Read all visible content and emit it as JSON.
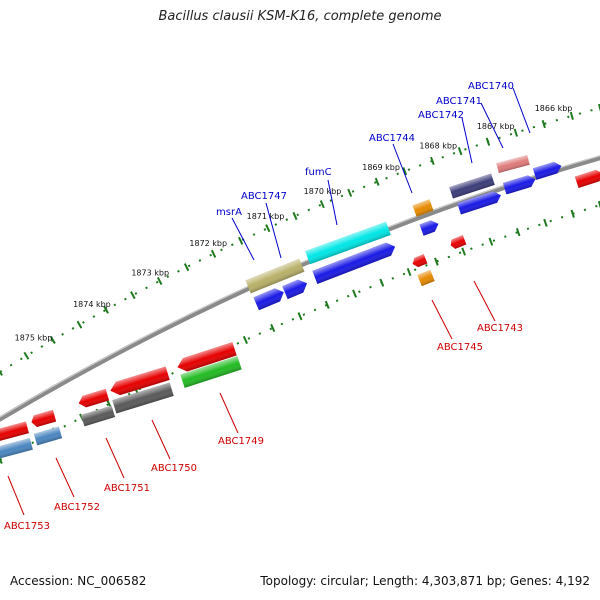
{
  "title": "Bacillus clausii KSM-K16, complete genome",
  "footer": {
    "accession": "Accession: NC_006582",
    "summary": "Topology: circular; Length: 4,303,871 bp; Genes: 4,192"
  },
  "colors": {
    "backbone": "#8a8a8a",
    "tick": "#1f7a1f",
    "top_label": "#0000cc",
    "bottom_label": "#cc0000"
  },
  "kbp_ticks": [
    {
      "label": "1866 kbp",
      "t": 0.93
    },
    {
      "label": "1867 kbp",
      "t": 0.836
    },
    {
      "label": "1868 kbp",
      "t": 0.742
    },
    {
      "label": "1869 kbp",
      "t": 0.648
    },
    {
      "label": "1870 kbp",
      "t": 0.551
    },
    {
      "label": "1871 kbp",
      "t": 0.456
    },
    {
      "label": "1872 kbp",
      "t": 0.36
    },
    {
      "label": "1873 kbp",
      "t": 0.262
    },
    {
      "label": "1874 kbp",
      "t": 0.163
    },
    {
      "label": "1875 kbp",
      "t": 0.063
    }
  ],
  "top_labels": [
    {
      "name": "ABC1740",
      "t": 0.88
    },
    {
      "name": "ABC1741",
      "t": 0.855
    },
    {
      "name": "ABC1742",
      "t": 0.758
    },
    {
      "name": "ABC1744",
      "t": 0.686
    },
    {
      "name": "fumC",
      "t": 0.565
    },
    {
      "name": "ABC1747",
      "t": 0.468
    },
    {
      "name": "msrA",
      "t": 0.42
    }
  ],
  "bottom_labels": [
    {
      "name": "ABC1743",
      "t": 0.79
    },
    {
      "name": "ABC1745",
      "t": 0.712
    },
    {
      "name": "ABC1749",
      "t": 0.355
    },
    {
      "name": "ABC1750",
      "t": 0.245
    },
    {
      "name": "ABC1751",
      "t": 0.165
    },
    {
      "name": "ABC1752",
      "t": 0.075
    },
    {
      "name": "ABC1753",
      "t": 0.005
    }
  ]
}
